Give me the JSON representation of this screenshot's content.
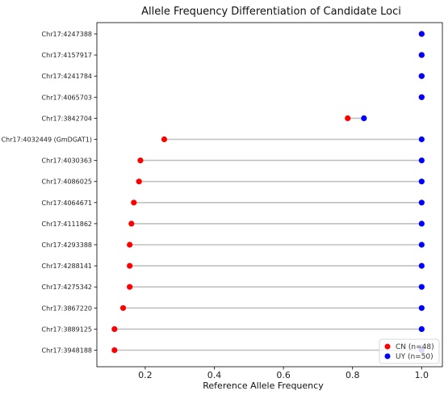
{
  "chart_data": {
    "type": "dumbbell",
    "title": "Allele Frequency Differentiation of Candidate Loci",
    "xlabel": "Reference Allele Frequency",
    "ylabel": "",
    "xlim": [
      0.06,
      1.06
    ],
    "xticks": [
      0.2,
      0.4,
      0.6,
      0.8,
      1.0
    ],
    "xtick_labels": [
      "0.2",
      "0.4",
      "0.6",
      "0.8",
      "1.0"
    ],
    "grid": false,
    "legend_position": "bottom-right",
    "categories": [
      "Chr17:4247388",
      "Chr17:4157917",
      "Chr17:4241784",
      "Chr17:4065703",
      "Chr17:3842704",
      "Chr17:4032449 (GmDGAT1)",
      "Chr17:4030363",
      "Chr17:4086025",
      "Chr17:4064671",
      "Chr17:4111862",
      "Chr17:4293388",
      "Chr17:4288141",
      "Chr17:4275342",
      "Chr17:3867220",
      "Chr17:3889125",
      "Chr17:3948188"
    ],
    "series": [
      {
        "name": "CN (n=48)",
        "color": "#ff0000",
        "values": [
          1.0,
          1.0,
          1.0,
          1.0,
          0.786,
          0.255,
          0.186,
          0.182,
          0.167,
          0.16,
          0.155,
          0.155,
          0.155,
          0.136,
          0.111,
          0.111
        ]
      },
      {
        "name": "UY (n=50)",
        "color": "#0000ff",
        "values": [
          1.0,
          1.0,
          1.0,
          1.0,
          0.833,
          1.0,
          1.0,
          1.0,
          1.0,
          1.0,
          1.0,
          1.0,
          1.0,
          1.0,
          1.0,
          1.0
        ]
      }
    ],
    "connector_color": "#c0c0c0"
  }
}
